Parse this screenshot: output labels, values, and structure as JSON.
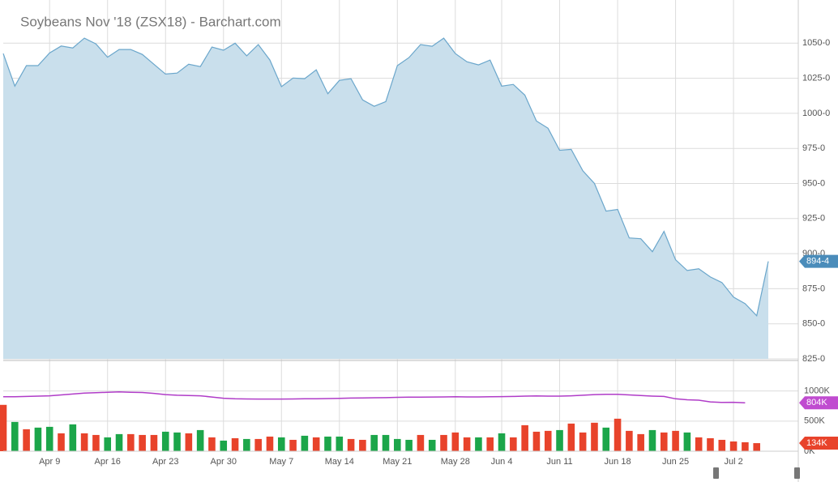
{
  "chart_data": {
    "type": "area",
    "title": "Soybeans Nov '18 (ZSX18) - Barchart.com",
    "categories": [
      null,
      null,
      null,
      null,
      "Apr 9",
      null,
      null,
      null,
      null,
      "Apr 16",
      null,
      null,
      null,
      null,
      "Apr 23",
      null,
      null,
      null,
      null,
      "Apr 30",
      null,
      null,
      null,
      null,
      "May 7",
      null,
      null,
      null,
      null,
      "May 14",
      null,
      null,
      null,
      null,
      "May 21",
      null,
      null,
      null,
      null,
      "May 28",
      null,
      null,
      null,
      "Jun 4",
      null,
      null,
      null,
      null,
      "Jun 11",
      null,
      null,
      null,
      null,
      "Jun 18",
      null,
      null,
      null,
      null,
      "Jun 25",
      null,
      null,
      null,
      null,
      "Jul 2",
      null,
      null,
      null
    ],
    "values": [
      1042.6,
      1019.4,
      1034,
      1034,
      1043,
      1048,
      1046.6,
      1053.6,
      1049.5,
      1040,
      1045.5,
      1045.5,
      1042,
      1035,
      1028,
      1028.7,
      1035,
      1033.3,
      1047.2,
      1045,
      1050,
      1041,
      1049,
      1038,
      1019,
      1025.2,
      1024.7,
      1031,
      1014,
      1023.5,
      1024.7,
      1009.6,
      1005,
      1008.4,
      1034,
      1039.7,
      1049,
      1047.8,
      1053.6,
      1042.6,
      1036.8,
      1034.5,
      1038,
      1019.4,
      1020.6,
      1013,
      994.5,
      989.4,
      973.7,
      974.3,
      959,
      950,
      930.3,
      931.5,
      911.2,
      910.6,
      901.4,
      915.9,
      895.6,
      888,
      889.2,
      883.4,
      879.4,
      869,
      864.4,
      855.7,
      894.5
    ],
    "color": "#6aa6cb",
    "fill": "#c9dfec",
    "grid": true,
    "ylim": [
      825,
      1075
    ],
    "yticks": [
      {
        "value": 825,
        "label": "825-0"
      },
      {
        "value": 850,
        "label": "850-0"
      },
      {
        "value": 875,
        "label": "875-0"
      },
      {
        "value": 900,
        "label": "900-0"
      },
      {
        "value": 925,
        "label": "925-0"
      },
      {
        "value": 950,
        "label": "950-0"
      },
      {
        "value": 975,
        "label": "975-0"
      },
      {
        "value": 1000,
        "label": "1000-0"
      },
      {
        "value": 1025,
        "label": "1025-0"
      },
      {
        "value": 1050,
        "label": "1050-0"
      }
    ],
    "last_price": {
      "value": 894.5,
      "label": "894-4",
      "color": "#4a8cba"
    },
    "volume": [
      770000,
      486000,
      365000,
      392000,
      405000,
      297000,
      446000,
      297000,
      270000,
      230000,
      284000,
      284000,
      270000,
      270000,
      324000,
      311000,
      297000,
      351000,
      230000,
      176000,
      216000,
      203000,
      203000,
      243000,
      230000,
      189000,
      257000,
      230000,
      243000,
      243000,
      203000,
      189000,
      270000,
      270000,
      203000,
      189000,
      270000,
      189000,
      270000,
      311000,
      230000,
      230000,
      230000,
      297000,
      230000,
      432000,
      324000,
      338000,
      351000,
      459000,
      311000,
      473000,
      392000,
      540000,
      338000,
      284000,
      351000,
      311000,
      338000,
      311000,
      230000,
      216000,
      189000,
      162000,
      149000,
      134000,
      null
    ],
    "volume_colors": [
      "#e8432b",
      "#1ca64a",
      "#e8432b",
      "#1ca64a",
      "#1ca64a",
      "#e8432b",
      "#1ca64a",
      "#e8432b",
      "#e8432b",
      "#1ca64a",
      "#1ca64a",
      "#e8432b",
      "#e8432b",
      "#e8432b",
      "#1ca64a",
      "#1ca64a",
      "#e8432b",
      "#1ca64a",
      "#e8432b",
      "#1ca64a",
      "#e8432b",
      "#1ca64a",
      "#e8432b",
      "#e8432b",
      "#1ca64a",
      "#e8432b",
      "#1ca64a",
      "#e8432b",
      "#1ca64a",
      "#1ca64a",
      "#e8432b",
      "#e8432b",
      "#1ca64a",
      "#1ca64a",
      "#1ca64a",
      "#1ca64a",
      "#e8432b",
      "#1ca64a",
      "#e8432b",
      "#e8432b",
      "#e8432b",
      "#1ca64a",
      "#e8432b",
      "#1ca64a",
      "#e8432b",
      "#e8432b",
      "#e8432b",
      "#e8432b",
      "#1ca64a",
      "#e8432b",
      "#e8432b",
      "#e8432b",
      "#1ca64a",
      "#e8432b",
      "#e8432b",
      "#e8432b",
      "#1ca64a",
      "#e8432b",
      "#e8432b",
      "#1ca64a",
      "#e8432b",
      "#e8432b",
      "#e8432b",
      "#e8432b",
      "#e8432b",
      "#e8432b",
      null
    ],
    "volume_ma": [
      905000,
      905000,
      910000,
      915000,
      920000,
      935000,
      950000,
      965000,
      972000,
      980000,
      985000,
      980000,
      975000,
      960000,
      940000,
      930000,
      925000,
      920000,
      900000,
      880000,
      870000,
      868000,
      866000,
      866000,
      866000,
      868000,
      870000,
      872000,
      875000,
      878000,
      882000,
      885000,
      888000,
      890000,
      895000,
      898000,
      898000,
      900000,
      902000,
      904000,
      902000,
      902000,
      905000,
      907000,
      910000,
      915000,
      918000,
      915000,
      915000,
      920000,
      930000,
      940000,
      945000,
      945000,
      935000,
      925000,
      915000,
      910000,
      870000,
      855000,
      848000,
      820000,
      810000,
      812000,
      804000,
      null,
      null
    ],
    "volume_ma_color": "#b03cc8",
    "volume_ylim": [
      0,
      1480000
    ],
    "volume_yticks": [
      {
        "value": 0,
        "label": "0K"
      },
      {
        "value": 500000,
        "label": "500K"
      },
      {
        "value": 1000000,
        "label": "1000K"
      }
    ],
    "last_volume_ma": {
      "value": 804000,
      "label": "804K",
      "color": "#c04cd0"
    },
    "last_volume": {
      "value": 134000,
      "label": "134K",
      "color": "#e8432b"
    }
  }
}
